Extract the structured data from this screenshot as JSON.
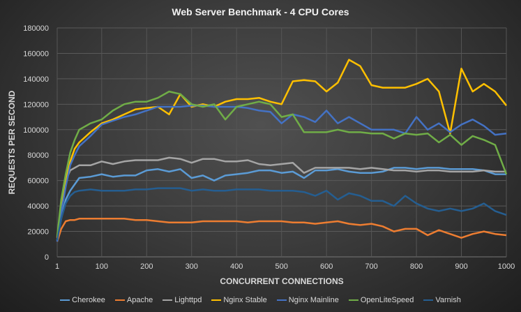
{
  "chart_data": {
    "type": "line",
    "title": "Web Server Benchmark - 4 CPU Cores",
    "xlabel": "CONCURRENT CONNECTIONS",
    "ylabel": "REQUESTS PER SECOND",
    "xlim": [
      1,
      1000
    ],
    "ylim": [
      0,
      180000
    ],
    "x_ticks": [
      1,
      100,
      200,
      300,
      400,
      500,
      600,
      700,
      800,
      900,
      1000
    ],
    "y_ticks": [
      0,
      20000,
      40000,
      60000,
      80000,
      100000,
      120000,
      140000,
      160000,
      180000
    ],
    "grid": true,
    "legend": "bottom",
    "x": [
      1,
      10,
      20,
      30,
      40,
      50,
      75,
      100,
      125,
      150,
      175,
      200,
      225,
      250,
      275,
      300,
      325,
      350,
      375,
      400,
      425,
      450,
      475,
      500,
      525,
      550,
      575,
      600,
      625,
      650,
      675,
      700,
      725,
      750,
      775,
      800,
      825,
      850,
      875,
      900,
      925,
      950,
      975,
      1000
    ],
    "series": [
      {
        "name": "Cherokee",
        "color": "#5b9bd5",
        "values": [
          13000,
          30000,
          45000,
          52000,
          57000,
          62000,
          63000,
          65000,
          63000,
          64000,
          64000,
          68000,
          69000,
          67000,
          69000,
          62000,
          64000,
          60000,
          64000,
          65000,
          66000,
          68000,
          68000,
          66000,
          67000,
          62000,
          68000,
          68000,
          69000,
          67000,
          66000,
          66000,
          67000,
          70000,
          70000,
          69000,
          70000,
          70000,
          69000,
          69000,
          69000,
          68000,
          65000,
          65000
        ]
      },
      {
        "name": "Apache",
        "color": "#ed7d31",
        "values": [
          12000,
          22000,
          28000,
          29000,
          29000,
          30000,
          30000,
          30000,
          30000,
          30000,
          29000,
          29000,
          28000,
          27000,
          27000,
          27000,
          28000,
          28000,
          28000,
          28000,
          27000,
          28000,
          28000,
          28000,
          27000,
          27000,
          26000,
          27000,
          28000,
          26000,
          25000,
          26000,
          24000,
          20000,
          22000,
          22000,
          17000,
          21000,
          18000,
          15000,
          18000,
          20000,
          18000,
          17000
        ]
      },
      {
        "name": "Lighttpd",
        "color": "#a5a5a5",
        "values": [
          13000,
          40000,
          60000,
          68000,
          70000,
          72000,
          72000,
          75000,
          73000,
          75000,
          76000,
          76000,
          76000,
          78000,
          77000,
          74000,
          77000,
          77000,
          75000,
          75000,
          76000,
          73000,
          72000,
          73000,
          74000,
          66000,
          70000,
          70000,
          70000,
          70000,
          69000,
          70000,
          69000,
          68000,
          68000,
          67000,
          68000,
          68000,
          67000,
          67000,
          67000,
          68000,
          67000,
          67000
        ]
      },
      {
        "name": "Nginx Stable",
        "color": "#ffc000",
        "values": [
          15000,
          40000,
          60000,
          75000,
          85000,
          90000,
          98000,
          105000,
          108000,
          112000,
          116000,
          117000,
          118000,
          112000,
          128000,
          118000,
          120000,
          118000,
          122000,
          124000,
          124000,
          125000,
          122000,
          120000,
          138000,
          139000,
          138000,
          130000,
          137000,
          155000,
          150000,
          135000,
          133000,
          133000,
          133000,
          136000,
          140000,
          130000,
          97000,
          148000,
          130000,
          136000,
          130000,
          119000
        ]
      },
      {
        "name": "Nginx Mainline",
        "color": "#4472c4",
        "values": [
          12000,
          35000,
          55000,
          72000,
          80000,
          87000,
          95000,
          104000,
          107000,
          110000,
          112000,
          115000,
          118000,
          118000,
          118000,
          119000,
          119000,
          118000,
          118000,
          118000,
          117000,
          115000,
          114000,
          105000,
          112000,
          110000,
          106000,
          115000,
          105000,
          110000,
          105000,
          100000,
          100000,
          100000,
          97000,
          110000,
          100000,
          105000,
          98000,
          104000,
          108000,
          103000,
          96000,
          97000
        ]
      },
      {
        "name": "OpenLiteSpeed",
        "color": "#70ad47",
        "values": [
          16000,
          45000,
          65000,
          82000,
          92000,
          100000,
          105000,
          108000,
          115000,
          120000,
          122000,
          122000,
          125000,
          130000,
          128000,
          120000,
          118000,
          120000,
          108000,
          118000,
          120000,
          122000,
          120000,
          110000,
          112000,
          98000,
          98000,
          98000,
          100000,
          98000,
          98000,
          97000,
          97000,
          93000,
          97000,
          96000,
          97000,
          90000,
          96000,
          88000,
          95000,
          92000,
          88000,
          65000
        ]
      },
      {
        "name": "Varnish",
        "color": "#255e91",
        "values": [
          13000,
          30000,
          42000,
          48000,
          51000,
          52000,
          53000,
          52000,
          52000,
          52000,
          53000,
          53000,
          54000,
          54000,
          54000,
          52000,
          53000,
          52000,
          52000,
          53000,
          53000,
          53000,
          52000,
          52000,
          52000,
          51000,
          48000,
          52000,
          45000,
          50000,
          48000,
          44000,
          44000,
          40000,
          48000,
          42000,
          38000,
          36000,
          38000,
          36000,
          38000,
          42000,
          36000,
          33000
        ]
      }
    ]
  }
}
